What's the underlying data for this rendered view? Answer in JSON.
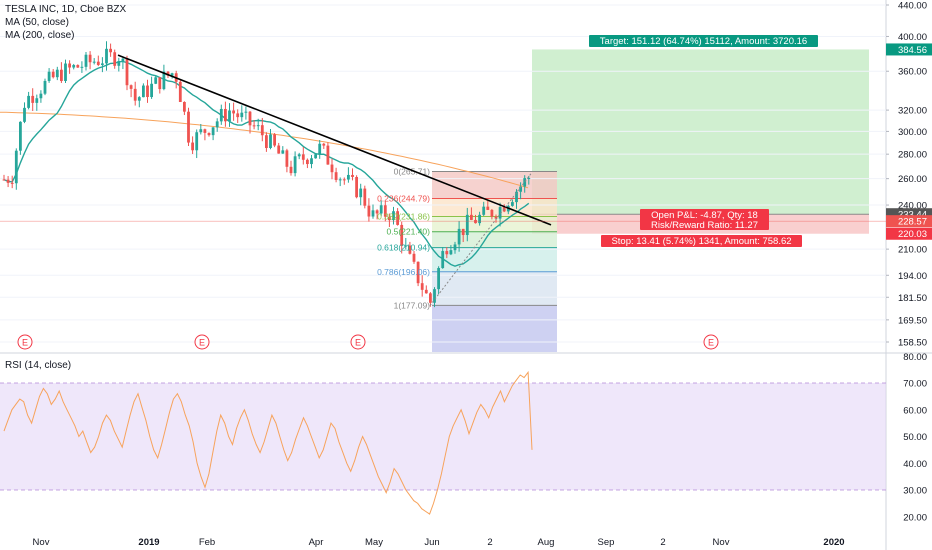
{
  "header": {
    "symbol_line": "TESLA INC, 1D, Cboe BZX",
    "ma50_label": "MA (50, close)",
    "ma200_label": "MA (200, close)",
    "rsi_label": "RSI (14, close)"
  },
  "colors": {
    "up": "#26a69a",
    "down": "#ef5350",
    "ma50": "#26a69a",
    "ma200": "#f7a35c",
    "trendline": "#000000",
    "rsi": "#f7a35c",
    "rsi_band": "#e1d3f5",
    "profit_zone": "#c8ecc8",
    "stop_zone": "#f8caca",
    "target_badge": "#089981",
    "stop_badge": "#f23645",
    "earnings": "#f23645",
    "axis_text": "#131722"
  },
  "chart_data": [
    {
      "type": "candlestick",
      "title": "TESLA INC, 1D, Cboe BZX",
      "y_axis_ticks": [
        440.0,
        400.0,
        360.0,
        320.0,
        300.0,
        280.0,
        260.0,
        240.0,
        210.0,
        194.0,
        181.5,
        169.5,
        158.5
      ],
      "y_axis_labels": [
        "440.00",
        "400.00",
        "360.00",
        "320.00",
        "300.00",
        "280.00",
        "260.00",
        "240.00",
        "210.00",
        "194.00",
        "181.50",
        "169.50",
        "158.50"
      ],
      "x_axis_labels": [
        "Nov",
        "2019",
        "Feb",
        "Apr",
        "May",
        "Jun",
        "2",
        "Aug",
        "Sep",
        "2",
        "Nov",
        "2020"
      ],
      "ylim": [
        150,
        445
      ],
      "y_scale": "log",
      "series": [
        {
          "name": "MA (50, close)",
          "kind": "line"
        },
        {
          "name": "MA (200, close)",
          "kind": "line"
        }
      ],
      "price_scale_badges": [
        {
          "value": "384.56",
          "color": "#089981"
        },
        {
          "value": "233.44",
          "color": "#555555"
        },
        {
          "value": "228.57",
          "color": "#ef5350"
        },
        {
          "value": "220.03",
          "color": "#f23645"
        }
      ],
      "fibonacci": [
        {
          "label": "0(265.71)",
          "value": 265.71
        },
        {
          "label": "0.236(244.79)",
          "value": 244.79
        },
        {
          "label": "0.382(231.86)",
          "value": 231.86
        },
        {
          "label": "0.5(221.40)",
          "value": 221.4
        },
        {
          "label": "0.618(210.94)",
          "value": 210.94
        },
        {
          "label": "0.786(196.06)",
          "value": 196.06
        },
        {
          "label": "1(177.09)",
          "value": 177.09
        }
      ],
      "position": {
        "target_text": "Target: 151.12 (64.74%) 15112, Amount: 3720.16",
        "pnl_text": "Open P&L: -4.87, Qty: 18",
        "rr_text": "Risk/Reward Ratio: 11.27",
        "stop_text": "Stop: 13.41 (5.74%) 1341, Amount: 758.62",
        "entry": 233.44,
        "target": 384.56,
        "stop": 220.03
      },
      "earnings_markers": [
        "E",
        "E",
        "E",
        "E"
      ]
    },
    {
      "type": "line",
      "title": "RSI (14, close)",
      "y_axis_ticks": [
        80.0,
        70.0,
        60.0,
        50.0,
        40.0,
        30.0,
        20.0
      ],
      "y_axis_labels": [
        "80.00",
        "70.00",
        "60.00",
        "50.00",
        "40.00",
        "30.00",
        "20.00"
      ],
      "ylim": [
        15,
        82
      ],
      "band": [
        30,
        70
      ],
      "values": [
        52,
        56,
        60,
        62,
        64,
        63,
        58,
        55,
        60,
        65,
        68,
        66,
        62,
        64,
        67,
        63,
        60,
        57,
        54,
        50,
        52,
        48,
        44,
        46,
        50,
        55,
        58,
        56,
        52,
        49,
        46,
        52,
        58,
        63,
        66,
        61,
        56,
        50,
        45,
        42,
        47,
        53,
        59,
        64,
        66,
        63,
        58,
        54,
        48,
        40,
        35,
        31,
        36,
        44,
        52,
        58,
        55,
        50,
        47,
        53,
        57,
        60,
        56,
        51,
        47,
        44,
        48,
        53,
        58,
        55,
        50,
        45,
        41,
        44,
        49,
        53,
        57,
        54,
        50,
        46,
        42,
        45,
        50,
        55,
        53,
        48,
        44,
        40,
        37,
        41,
        46,
        50,
        47,
        43,
        39,
        35,
        32,
        29,
        33,
        38,
        36,
        33,
        30,
        28,
        26,
        25,
        23,
        22,
        21,
        25,
        30,
        36,
        43,
        50,
        54,
        57,
        60,
        56,
        51,
        55,
        59,
        62,
        60,
        57,
        61,
        64,
        67,
        63,
        66,
        69,
        71,
        73,
        72,
        74,
        45
      ]
    }
  ]
}
